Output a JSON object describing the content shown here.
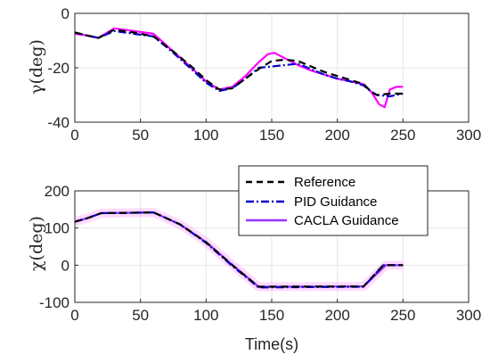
{
  "chart_data": [
    {
      "type": "line",
      "title": "",
      "xlabel": "",
      "ylabel": "γ(deg)",
      "xlim": [
        0,
        300
      ],
      "ylim": [
        -40,
        0
      ],
      "xticks": [
        "0",
        "50",
        "100",
        "150",
        "200",
        "250",
        "300"
      ],
      "yticks": [
        "0",
        "-20",
        "-40"
      ],
      "grid": true,
      "series": [
        {
          "key": "reference",
          "color": "#000000",
          "x": [
            0,
            8,
            18,
            30,
            45,
            60,
            75,
            90,
            100,
            110,
            120,
            130,
            140,
            150,
            160,
            170,
            180,
            190,
            200,
            210,
            220,
            225,
            230,
            240,
            250
          ],
          "y": [
            -7,
            -8,
            -9,
            -6,
            -7,
            -8.5,
            -14,
            -20,
            -24.5,
            -28,
            -27.5,
            -24,
            -20.5,
            -17.5,
            -17,
            -17.5,
            -19.5,
            -21.5,
            -23,
            -24.5,
            -26,
            -28.5,
            -30,
            -29.5,
            -29.5
          ]
        },
        {
          "key": "pid",
          "color": "#0000cc",
          "x": [
            0,
            8,
            18,
            30,
            45,
            60,
            75,
            90,
            100,
            110,
            120,
            130,
            140,
            150,
            160,
            170,
            180,
            190,
            200,
            210,
            220,
            225,
            230,
            240,
            250
          ],
          "y": [
            -7,
            -8,
            -9,
            -6.5,
            -7.5,
            -8.5,
            -14.5,
            -21,
            -25.5,
            -28.5,
            -27.5,
            -24,
            -20,
            -19.5,
            -19,
            -18.5,
            -20.5,
            -22.5,
            -24,
            -25,
            -26.5,
            -28.5,
            -30,
            -30.5,
            -29.5
          ]
        },
        {
          "key": "cacla",
          "color": "#ff00ff",
          "x": [
            0,
            8,
            18,
            30,
            45,
            60,
            75,
            90,
            100,
            110,
            120,
            130,
            140,
            147,
            152,
            160,
            170,
            180,
            190,
            200,
            210,
            220,
            226,
            232,
            236,
            240,
            245,
            250
          ],
          "y": [
            -7.5,
            -8,
            -9,
            -5.5,
            -6.5,
            -7.5,
            -14,
            -20.5,
            -25,
            -28,
            -27,
            -23,
            -18,
            -15,
            -14.5,
            -16.5,
            -19,
            -21,
            -22.5,
            -24,
            -25,
            -26,
            -29,
            -33.5,
            -34.5,
            -28,
            -27,
            -27
          ]
        }
      ]
    },
    {
      "type": "line",
      "title": "",
      "xlabel": "Time(s)",
      "ylabel": "χ(deg)",
      "xlim": [
        0,
        300
      ],
      "ylim": [
        -100,
        200
      ],
      "xticks": [
        "0",
        "50",
        "100",
        "150",
        "200",
        "250",
        "300"
      ],
      "yticks": [
        "200",
        "100",
        "0",
        "-100"
      ],
      "grid": true,
      "legend_position": "top-right",
      "series": [
        {
          "key": "reference",
          "name": "Reference",
          "color": "#000000",
          "x": [
            0,
            10,
            20,
            60,
            80,
            100,
            120,
            140,
            220,
            235,
            250
          ],
          "y": [
            117,
            127,
            140,
            142,
            110,
            62,
            0,
            -58,
            -57,
            0,
            0
          ]
        },
        {
          "key": "pid",
          "name": "PID Guidance",
          "color": "#0000cc",
          "x": [
            0,
            10,
            20,
            60,
            80,
            100,
            120,
            140,
            220,
            235,
            250
          ],
          "y": [
            117,
            127,
            140,
            142,
            110,
            60,
            -2,
            -60,
            -58,
            0,
            0
          ]
        },
        {
          "key": "cacla",
          "name": "CACLA Guidance",
          "color": "#9933ff",
          "x": [
            0,
            10,
            20,
            60,
            80,
            100,
            120,
            140,
            220,
            237,
            250
          ],
          "y": [
            117,
            127,
            140,
            142,
            110,
            62,
            1,
            -58,
            -57,
            0,
            0
          ]
        }
      ]
    }
  ]
}
